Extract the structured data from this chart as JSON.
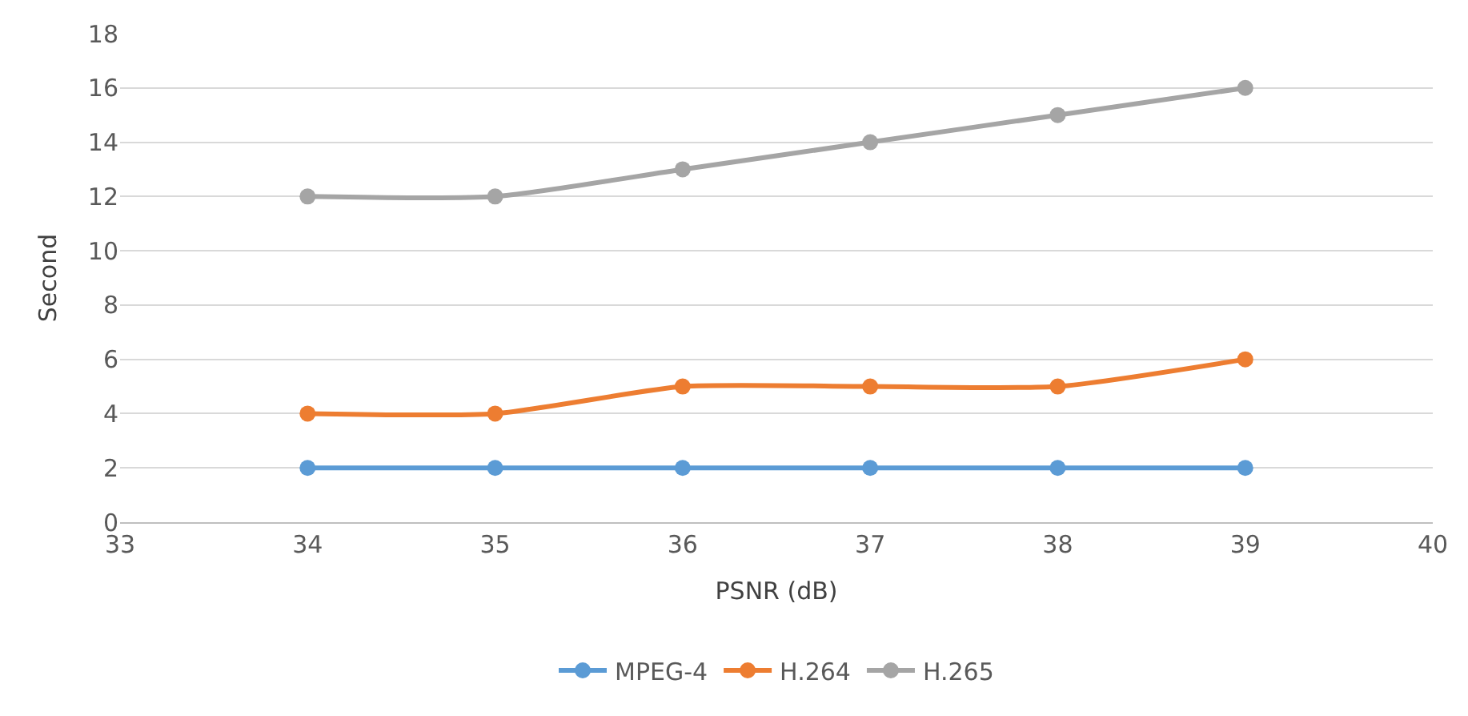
{
  "chart_data": {
    "type": "line",
    "xlabel": "PSNR (dB)",
    "ylabel": "Second",
    "x": [
      34,
      35,
      36,
      37,
      38,
      39
    ],
    "series": [
      {
        "name": "MPEG-4",
        "color": "#5b9bd5",
        "values": [
          2,
          2,
          2,
          2,
          2,
          2
        ]
      },
      {
        "name": "H.264",
        "color": "#ed7d31",
        "values": [
          4,
          4,
          5,
          5,
          5,
          6
        ]
      },
      {
        "name": "H.265",
        "color": "#a5a5a5",
        "values": [
          12,
          12,
          13,
          14,
          15,
          16
        ]
      }
    ],
    "xlim": [
      33,
      40
    ],
    "xticks": [
      33,
      34,
      35,
      36,
      37,
      38,
      39,
      40
    ],
    "ylim": [
      0,
      18
    ],
    "yticks": [
      0,
      2,
      4,
      6,
      8,
      10,
      12,
      14,
      16,
      18
    ],
    "grid": "y",
    "legend": "bottom",
    "marker": "circle",
    "line_style": "solid"
  }
}
